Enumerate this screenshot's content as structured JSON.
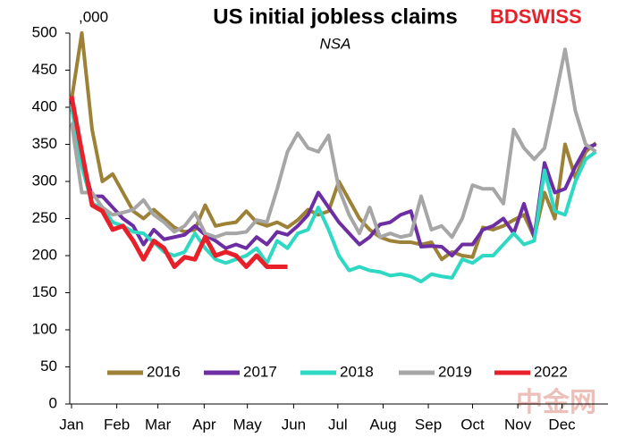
{
  "chart_data": {
    "type": "line",
    "title": "US initial jobless claims",
    "subtitle": "NSA",
    "unit_label": ",000",
    "logo": "BDSWISS",
    "watermark": "中金网",
    "x": [
      1,
      2,
      3,
      4,
      5,
      6,
      7,
      8,
      9,
      10,
      11,
      12,
      13,
      14,
      15,
      16,
      17,
      18,
      19,
      20,
      21,
      22,
      23,
      24,
      25,
      26,
      27,
      28,
      29,
      30,
      31,
      32,
      33,
      34,
      35,
      36,
      37,
      38,
      39,
      40,
      41,
      42,
      43,
      44,
      45,
      46,
      47,
      48,
      49,
      50,
      51,
      52
    ],
    "xlim": [
      1,
      53
    ],
    "xticks": [
      {
        "value": 1,
        "label": "Jan"
      },
      {
        "value": 5.4,
        "label": "Feb"
      },
      {
        "value": 9.4,
        "label": "Mar"
      },
      {
        "value": 13.9,
        "label": "Apr"
      },
      {
        "value": 18.1,
        "label": "May"
      },
      {
        "value": 22.6,
        "label": "Jun"
      },
      {
        "value": 26.9,
        "label": "Jul"
      },
      {
        "value": 31.3,
        "label": "Aug"
      },
      {
        "value": 35.7,
        "label": "Sep"
      },
      {
        "value": 40,
        "label": "Oct"
      },
      {
        "value": 44.4,
        "label": "Nov"
      },
      {
        "value": 48.7,
        "label": "Dec"
      }
    ],
    "ylim": [
      0,
      500
    ],
    "yticks": [
      0,
      50,
      100,
      150,
      200,
      250,
      300,
      350,
      400,
      450,
      500
    ],
    "legend": "bottom",
    "series": [
      {
        "name": "2016",
        "color": "#9c8136",
        "values": [
          410,
          500,
          370,
          300,
          310,
          285,
          260,
          250,
          262,
          250,
          238,
          232,
          235,
          268,
          240,
          243,
          245,
          260,
          245,
          240,
          245,
          238,
          248,
          262,
          255,
          260,
          300,
          275,
          250,
          235,
          225,
          220,
          218,
          218,
          215,
          218,
          195,
          205,
          200,
          198,
          238,
          235,
          240,
          248,
          255,
          225,
          285,
          250,
          350,
          305,
          340,
          352
        ]
      },
      {
        "name": "2017",
        "color": "#6d2ea3",
        "values": [
          410,
          330,
          280,
          280,
          265,
          250,
          240,
          215,
          235,
          222,
          225,
          228,
          240,
          228,
          220,
          210,
          215,
          210,
          225,
          215,
          232,
          228,
          240,
          255,
          285,
          265,
          245,
          230,
          215,
          225,
          242,
          245,
          255,
          260,
          212,
          213,
          212,
          200,
          215,
          215,
          235,
          240,
          250,
          230,
          270,
          225,
          325,
          285,
          290,
          320,
          345,
          350
        ]
      },
      {
        "name": "2018",
        "color": "#2ed8c3",
        "values": [
          400,
          320,
          270,
          265,
          245,
          240,
          232,
          230,
          218,
          205,
          200,
          205,
          230,
          210,
          195,
          190,
          195,
          200,
          210,
          190,
          220,
          210,
          230,
          235,
          265,
          235,
          200,
          180,
          185,
          180,
          178,
          173,
          175,
          172,
          165,
          175,
          172,
          170,
          195,
          190,
          200,
          200,
          215,
          230,
          215,
          220,
          315,
          260,
          255,
          300,
          330,
          340
        ]
      },
      {
        "name": "2019",
        "color": "#a6a6a6",
        "values": [
          380,
          285,
          285,
          265,
          255,
          258,
          262,
          275,
          255,
          245,
          232,
          240,
          258,
          230,
          225,
          230,
          230,
          232,
          248,
          245,
          290,
          340,
          365,
          345,
          340,
          362,
          290,
          255,
          230,
          265,
          225,
          230,
          225,
          228,
          280,
          235,
          240,
          225,
          250,
          295,
          290,
          290,
          270,
          370,
          345,
          330,
          345,
          410,
          478,
          395,
          350,
          340
        ]
      },
      {
        "name": "2022",
        "color": "#e8202a",
        "values": [
          415,
          340,
          268,
          260,
          235,
          240,
          220,
          195,
          220,
          210,
          185,
          198,
          195,
          225,
          200,
          205,
          200,
          185,
          200,
          185,
          185,
          185,
          null,
          null,
          null,
          null,
          null,
          null,
          null,
          null,
          null,
          null,
          null,
          null,
          null,
          null,
          null,
          null,
          null,
          null,
          null,
          null,
          null,
          null,
          null,
          null,
          null,
          null,
          null,
          null,
          null,
          null
        ]
      }
    ]
  }
}
